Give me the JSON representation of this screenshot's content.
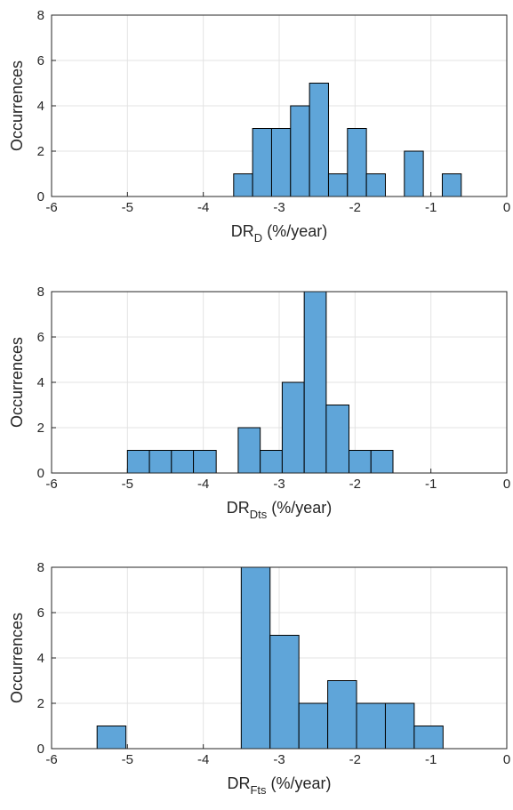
{
  "chart_data": [
    {
      "type": "histogram",
      "color": "#5fa5d9",
      "grid": true,
      "ylabel": "Occurrences",
      "xlabel": {
        "main": "DR",
        "subscript": "D",
        "suffix": " (%/year)"
      },
      "bins": [
        -3.6,
        -3.35,
        -3.1,
        -2.85,
        -2.6,
        -2.35,
        -2.1,
        -1.85,
        -1.6,
        -1.35,
        -1.1,
        -0.85,
        -0.6
      ],
      "values": [
        1,
        3,
        3,
        4,
        5,
        1,
        3,
        1,
        0,
        2,
        0,
        1
      ],
      "xlim": [
        -6,
        0
      ],
      "xticks": [
        -6,
        -5,
        -4,
        -3,
        -2,
        -1,
        0
      ],
      "ylim": [
        0,
        8
      ],
      "yticks": [
        0,
        2,
        4,
        6,
        8
      ]
    },
    {
      "type": "histogram",
      "color": "#5fa5d9",
      "grid": true,
      "ylabel": "Occurrences",
      "xlabel": {
        "main": "DR",
        "subscript": "Dts",
        "suffix": " (%/year)"
      },
      "bins": [
        -5,
        -4.71,
        -4.42,
        -4.13,
        -3.83,
        -3.54,
        -3.25,
        -2.96,
        -2.67,
        -2.38,
        -2.08,
        -1.79,
        -1.5
      ],
      "values": [
        1,
        1,
        1,
        1,
        0,
        2,
        1,
        4,
        8,
        3,
        1,
        1
      ],
      "xlim": [
        -6,
        0
      ],
      "xticks": [
        -6,
        -5,
        -4,
        -3,
        -2,
        -1,
        0
      ],
      "ylim": [
        0,
        8
      ],
      "yticks": [
        0,
        2,
        4,
        6,
        8
      ]
    },
    {
      "type": "histogram",
      "color": "#5fa5d9",
      "grid": true,
      "ylabel": "Occurrences",
      "xlabel": {
        "main": "DR",
        "subscript": "Fts",
        "suffix": " (%/year)"
      },
      "bins": [
        -5.4,
        -5.02,
        -4.64,
        -4.26,
        -3.88,
        -3.5,
        -3.12,
        -2.74,
        -2.36,
        -1.98,
        -1.6,
        -1.22,
        -0.84
      ],
      "values": [
        1,
        0,
        0,
        0,
        0,
        8,
        5,
        2,
        3,
        2,
        2,
        1
      ],
      "xlim": [
        -6,
        0
      ],
      "xticks": [
        -6,
        -5,
        -4,
        -3,
        -2,
        -1,
        0
      ],
      "ylim": [
        0,
        8
      ],
      "yticks": [
        0,
        2,
        4,
        6,
        8
      ]
    }
  ]
}
